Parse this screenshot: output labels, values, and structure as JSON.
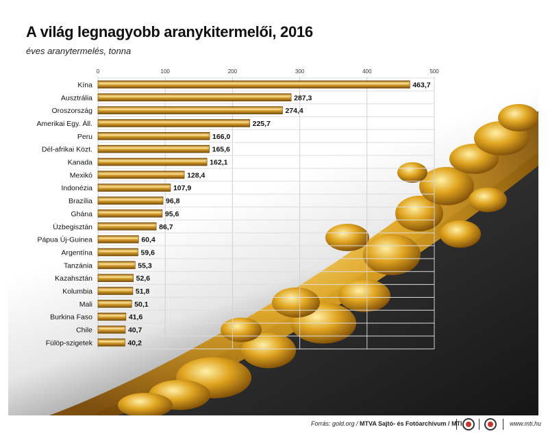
{
  "title": "A világ legnagyobb aranykitermelői, 2016",
  "subtitle": "éves aranytermelés, tonna",
  "chart_data": {
    "type": "bar",
    "orientation": "horizontal",
    "title": "A világ legnagyobb aranykitermelői, 2016",
    "subtitle": "éves aranytermelés, tonna",
    "xlim": [
      0,
      500
    ],
    "xticks": [
      0,
      100,
      200,
      300,
      400,
      500
    ],
    "grid": true,
    "categories": [
      "Kína",
      "Ausztrália",
      "Oroszország",
      "Amerikai Egy. Áll.",
      "Peru",
      "Dél-afrikai Közt.",
      "Kanada",
      "Mexikó",
      "Indonézia",
      "Brazília",
      "Ghána",
      "Üzbegisztán",
      "Pápua Új-Guinea",
      "Argentína",
      "Tanzánia",
      "Kazahsztán",
      "Kolumbia",
      "Mali",
      "Burkina Faso",
      "Chile",
      "Fülöp-szigetek"
    ],
    "values": [
      463.7,
      287.3,
      274.4,
      225.7,
      166.0,
      165.6,
      162.1,
      128.4,
      107.9,
      96.8,
      95.6,
      86.7,
      60.4,
      59.6,
      55.3,
      52.6,
      51.8,
      50.1,
      41.6,
      40.7,
      40.2
    ],
    "value_labels": [
      "463,7",
      "287,3",
      "274,4",
      "225,7",
      "166,0",
      "165,6",
      "162,1",
      "128,4",
      "107,9",
      "96,8",
      "95,6",
      "86,7",
      "60,4",
      "59,6",
      "55,3",
      "52,6",
      "51,8",
      "50,1",
      "41,6",
      "40,7",
      "40,2"
    ],
    "bar_color": "#c9952c"
  },
  "footer": {
    "source_label": "Forrás: gold.org /",
    "source_org": "MTVA Sajtó- és Fotóarchívum / MTI",
    "website": "www.mti.hu"
  },
  "logos": {
    "left": "mtva-logo-icon",
    "right": "mti-logo-icon"
  }
}
